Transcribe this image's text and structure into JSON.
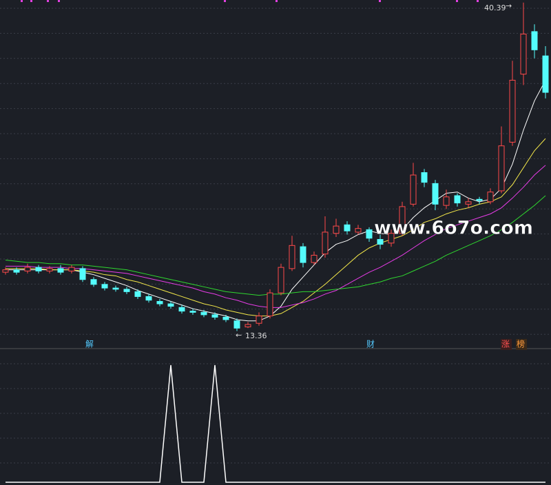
{
  "chart_data": {
    "type": "candlestick",
    "up_color": "#ff4a4a",
    "down_color": "#54fcfc",
    "ylim": [
      12.2,
      40.6
    ],
    "open": [
      18.2,
      18.4,
      18.3,
      18.6,
      18.3,
      18.5,
      18.3,
      18.5,
      17.6,
      17.2,
      16.9,
      16.8,
      16.6,
      16.2,
      15.8,
      15.6,
      15.3,
      15.0,
      14.9,
      14.7,
      14.5,
      14.2,
      13.7,
      14.0,
      14.6,
      16.5,
      18.5,
      20.3,
      19.0,
      19.7,
      21.4,
      22.1,
      21.5,
      21.7,
      20.9,
      20.6,
      21.4,
      23.8,
      26.4,
      25.5,
      23.7,
      24.5,
      23.8,
      24.2,
      24.0,
      24.9,
      28.9,
      34.5,
      38.0,
      36.0
    ],
    "high": [
      18.6,
      18.6,
      18.9,
      18.8,
      18.7,
      18.8,
      18.8,
      18.7,
      17.8,
      17.4,
      17.1,
      17.0,
      16.8,
      16.4,
      16.0,
      15.8,
      15.5,
      15.2,
      15.1,
      14.9,
      14.7,
      14.4,
      14.1,
      14.9,
      16.8,
      18.9,
      21.2,
      20.6,
      19.9,
      22.8,
      22.6,
      22.4,
      22.1,
      21.9,
      21.3,
      21.7,
      24.0,
      27.2,
      26.7,
      25.8,
      25.0,
      24.7,
      24.3,
      24.4,
      25.1,
      30.2,
      35.6,
      40.39,
      38.6,
      36.8
    ],
    "low": [
      18.0,
      18.0,
      18.1,
      18.1,
      18.1,
      18.0,
      18.1,
      17.4,
      17.0,
      16.7,
      16.6,
      16.4,
      16.0,
      15.7,
      15.4,
      15.2,
      14.8,
      14.7,
      14.5,
      14.3,
      14.1,
      13.36,
      13.6,
      13.8,
      14.4,
      16.3,
      18.3,
      18.6,
      18.8,
      19.4,
      21.1,
      21.3,
      21.3,
      20.7,
      20.1,
      20.3,
      21.2,
      23.6,
      25.2,
      23.3,
      23.4,
      23.6,
      23.5,
      23.8,
      23.8,
      24.7,
      28.6,
      33.6,
      35.8,
      32.5
    ],
    "close": [
      18.4,
      18.2,
      18.6,
      18.3,
      18.5,
      18.2,
      18.6,
      17.6,
      17.2,
      16.9,
      16.8,
      16.6,
      16.2,
      15.9,
      15.6,
      15.4,
      15.0,
      14.9,
      14.7,
      14.5,
      14.3,
      13.6,
      13.9,
      14.6,
      16.5,
      18.6,
      20.4,
      19.0,
      19.6,
      21.5,
      22.0,
      21.6,
      21.8,
      21.0,
      20.5,
      21.4,
      23.6,
      26.2,
      25.6,
      23.8,
      24.4,
      23.9,
      24.0,
      24.1,
      24.8,
      28.6,
      34.0,
      37.8,
      36.5,
      33.0
    ],
    "moving_averages": [
      {
        "color": "#ffffff",
        "values": [
          18.4,
          18.4,
          18.4,
          18.4,
          18.4,
          18.4,
          18.4,
          18.2,
          18.0,
          17.7,
          17.4,
          17.1,
          16.7,
          16.4,
          16.1,
          15.8,
          15.5,
          15.2,
          15.0,
          14.8,
          14.6,
          14.3,
          14.2,
          14.2,
          14.6,
          15.4,
          16.8,
          17.8,
          18.8,
          19.8,
          20.5,
          20.8,
          21.3,
          21.6,
          21.4,
          21.3,
          21.7,
          22.7,
          23.5,
          24.1,
          24.7,
          24.8,
          24.3,
          24.0,
          24.2,
          25.1,
          27.1,
          29.9,
          32.3,
          34.0
        ]
      },
      {
        "color": "#f5e94a",
        "values": [
          18.5,
          18.5,
          18.5,
          18.5,
          18.4,
          18.4,
          18.4,
          18.3,
          18.2,
          18.0,
          17.9,
          17.6,
          17.4,
          17.1,
          16.8,
          16.5,
          16.2,
          15.9,
          15.6,
          15.4,
          15.1,
          14.9,
          14.7,
          14.6,
          14.6,
          14.8,
          15.3,
          15.8,
          16.5,
          17.2,
          18.0,
          18.8,
          19.6,
          20.2,
          20.6,
          20.9,
          21.2,
          21.7,
          22.3,
          22.6,
          23.0,
          23.3,
          23.5,
          23.8,
          24.0,
          24.4,
          25.4,
          26.8,
          28.2,
          29.2
        ]
      },
      {
        "color": "#e83ce8",
        "values": [
          18.7,
          18.7,
          18.7,
          18.6,
          18.6,
          18.6,
          18.5,
          18.5,
          18.4,
          18.3,
          18.2,
          18.1,
          17.9,
          17.7,
          17.5,
          17.3,
          17.1,
          16.9,
          16.6,
          16.4,
          16.1,
          15.9,
          15.6,
          15.4,
          15.3,
          15.3,
          15.5,
          15.7,
          16.0,
          16.4,
          16.7,
          17.2,
          17.7,
          18.2,
          18.6,
          19.1,
          19.6,
          20.2,
          20.8,
          21.3,
          21.8,
          22.1,
          22.4,
          22.7,
          23.0,
          23.5,
          24.3,
          25.2,
          26.2,
          27.0
        ]
      },
      {
        "color": "#2fd82f",
        "values": [
          19.2,
          19.1,
          19.0,
          19.0,
          18.9,
          18.9,
          18.8,
          18.8,
          18.7,
          18.6,
          18.5,
          18.4,
          18.2,
          18.0,
          17.8,
          17.6,
          17.4,
          17.2,
          17.0,
          16.8,
          16.6,
          16.5,
          16.4,
          16.3,
          16.4,
          16.4,
          16.5,
          16.6,
          16.6,
          16.7,
          16.8,
          16.9,
          17.0,
          17.2,
          17.4,
          17.7,
          17.9,
          18.3,
          18.7,
          19.1,
          19.6,
          20.0,
          20.4,
          20.8,
          21.2,
          21.7,
          22.3,
          23.0,
          23.7,
          24.5
        ]
      }
    ],
    "indicator": {
      "type": "line",
      "color": "#ffffff",
      "ylim": [
        0,
        1
      ],
      "values": [
        0,
        0,
        0,
        0,
        0,
        0,
        0,
        0,
        0,
        0,
        0,
        0,
        0,
        0,
        0,
        1,
        0,
        0,
        0,
        1,
        0,
        0,
        0,
        0,
        0,
        0,
        0,
        0,
        0,
        0,
        0,
        0,
        0,
        0,
        0,
        0,
        0,
        0,
        0,
        0,
        0,
        0,
        0,
        0,
        0,
        0,
        0,
        0,
        0,
        0
      ]
    },
    "markers": [
      "解",
      "财",
      "涨",
      "榜"
    ],
    "watermark": "www.6o7o.com"
  }
}
